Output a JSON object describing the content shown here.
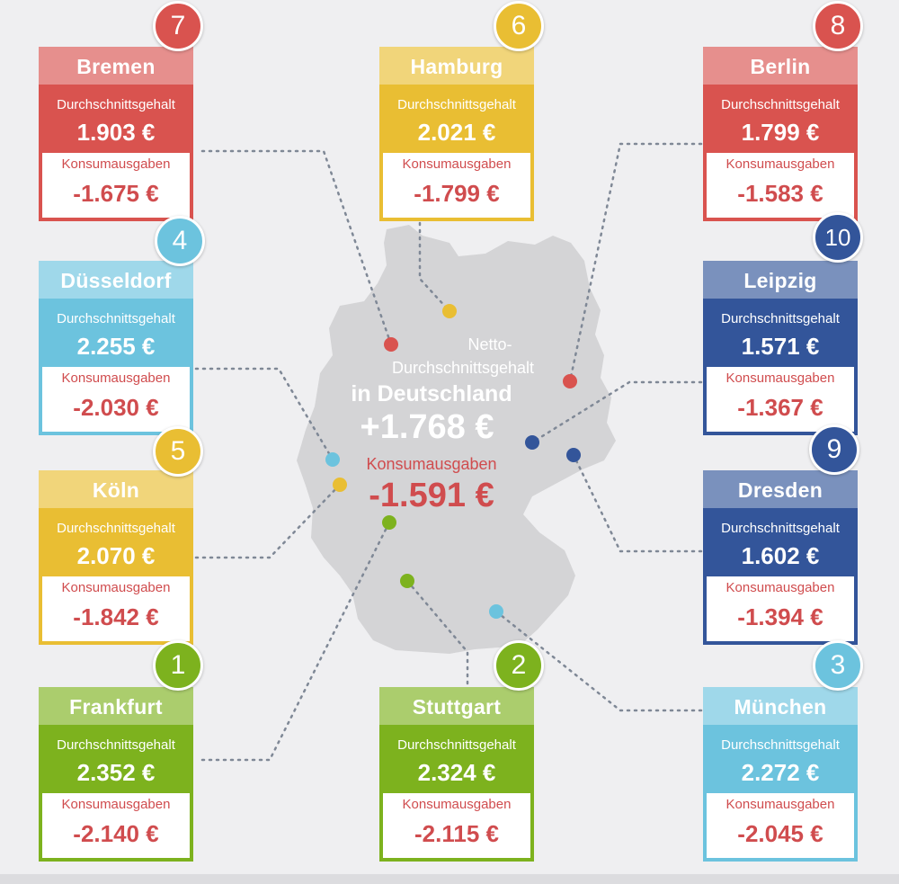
{
  "labels": {
    "salary": "Durchschnittsgehalt",
    "spending": "Konsumausgaben"
  },
  "center": {
    "line1": "Netto-",
    "line2": "Durchschnittsgehalt",
    "line3": "in Deutschland",
    "salary": "+1.768 €",
    "spending_label": "Konsumausgaben",
    "spending": "-1.591 €"
  },
  "colors": {
    "red": "#d9534f",
    "yellow": "#e9be33",
    "lightblue": "#6cc3de",
    "darkblue": "#33559a",
    "green": "#7db21e",
    "map": "#d4d4d6"
  },
  "cities": [
    {
      "name": "Bremen",
      "rank": "7",
      "salary": "1.903 €",
      "spending": "-1.675 €",
      "color": "red"
    },
    {
      "name": "Hamburg",
      "rank": "6",
      "salary": "2.021 €",
      "spending": "-1.799 €",
      "color": "yellow"
    },
    {
      "name": "Berlin",
      "rank": "8",
      "salary": "1.799 €",
      "spending": "-1.583 €",
      "color": "red"
    },
    {
      "name": "Düsseldorf",
      "rank": "4",
      "salary": "2.255 €",
      "spending": "-2.030 €",
      "color": "lightblue"
    },
    {
      "name": "Leipzig",
      "rank": "10",
      "salary": "1.571 €",
      "spending": "-1.367 €",
      "color": "darkblue"
    },
    {
      "name": "Köln",
      "rank": "5",
      "salary": "2.070 €",
      "spending": "-1.842 €",
      "color": "yellow"
    },
    {
      "name": "Dresden",
      "rank": "9",
      "salary": "1.602 €",
      "spending": "-1.394 €",
      "color": "darkblue"
    },
    {
      "name": "Frankfurt",
      "rank": "1",
      "salary": "2.352 €",
      "spending": "-2.140 €",
      "color": "green"
    },
    {
      "name": "Stuttgart",
      "rank": "2",
      "salary": "2.324 €",
      "spending": "-2.115 €",
      "color": "green"
    },
    {
      "name": "München",
      "rank": "3",
      "salary": "2.272 €",
      "spending": "-2.045 €",
      "color": "lightblue"
    }
  ]
}
